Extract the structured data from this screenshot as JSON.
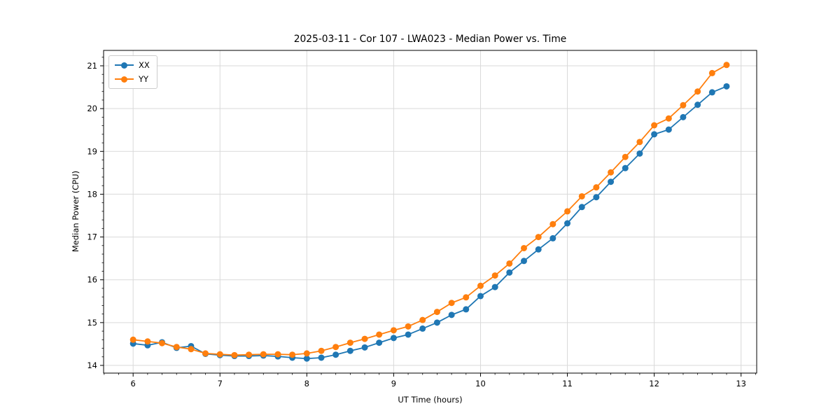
{
  "chart_data": {
    "type": "line",
    "title": "2025-03-11 - Cor 107 - LWA023 - Median Power vs. Time",
    "xlabel": "UT Time (hours)",
    "ylabel": "Median Power (CPU)",
    "xlim": [
      5.66,
      13.18
    ],
    "ylim": [
      13.82,
      21.36
    ],
    "x_ticks": [
      6,
      7,
      8,
      9,
      10,
      11,
      12,
      13
    ],
    "y_ticks": [
      14,
      15,
      16,
      17,
      18,
      19,
      20,
      21
    ],
    "x_minor_subdivisions": 6,
    "y_minor_subdivisions": 5,
    "grid": true,
    "legend_position": "upper-left",
    "marker": "circle",
    "x": [
      6.0,
      6.167,
      6.333,
      6.5,
      6.667,
      6.833,
      7.0,
      7.167,
      7.333,
      7.5,
      7.667,
      7.833,
      8.0,
      8.167,
      8.333,
      8.5,
      8.667,
      8.833,
      9.0,
      9.167,
      9.333,
      9.5,
      9.667,
      9.833,
      10.0,
      10.167,
      10.333,
      10.5,
      10.667,
      10.833,
      11.0,
      11.167,
      11.333,
      11.5,
      11.667,
      11.833,
      12.0,
      12.167,
      12.333,
      12.5,
      12.667,
      12.833
    ],
    "series": [
      {
        "name": "XX",
        "color": "#1f77b4",
        "values": [
          14.51,
          14.47,
          14.54,
          14.41,
          14.45,
          14.27,
          14.24,
          14.22,
          14.22,
          14.23,
          14.21,
          14.18,
          14.16,
          14.18,
          14.25,
          14.34,
          14.42,
          14.53,
          14.64,
          14.72,
          14.86,
          15.0,
          15.18,
          15.31,
          15.62,
          15.83,
          16.17,
          16.44,
          16.71,
          16.97,
          17.32,
          17.7,
          17.93,
          18.29,
          18.61,
          18.95,
          19.4,
          19.51,
          19.8,
          20.09,
          20.38,
          20.52
        ]
      },
      {
        "name": "YY",
        "color": "#ff7f0e",
        "values": [
          14.6,
          14.56,
          14.52,
          14.43,
          14.38,
          14.28,
          14.26,
          14.24,
          14.25,
          14.26,
          14.26,
          14.25,
          14.28,
          14.34,
          14.43,
          14.53,
          14.62,
          14.72,
          14.82,
          14.91,
          15.06,
          15.25,
          15.46,
          15.59,
          15.86,
          16.1,
          16.38,
          16.74,
          17.0,
          17.3,
          17.6,
          17.95,
          18.16,
          18.51,
          18.87,
          19.22,
          19.61,
          19.77,
          20.08,
          20.4,
          20.83,
          21.02
        ]
      }
    ],
    "style": {
      "grid_color": "#d9d9d9",
      "spine_color": "#000000",
      "tick_color": "#000000",
      "background": "#ffffff",
      "line_width": 1.8,
      "marker_radius": 4.5
    }
  }
}
